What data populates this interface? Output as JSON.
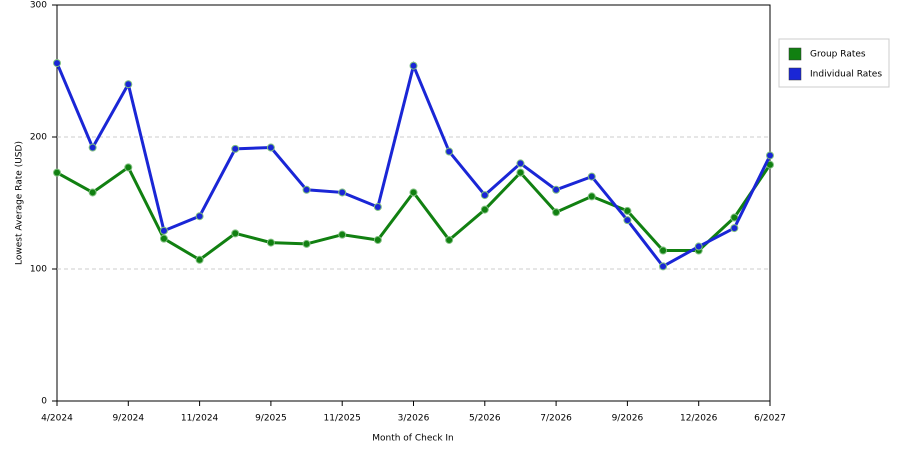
{
  "chart_data": {
    "type": "line",
    "x_label": "Month of Check In",
    "y_label": "Lowest Average Rate (USD)",
    "categories": [
      "4/2024",
      null,
      "9/2024",
      null,
      "11/2024",
      null,
      "9/2025",
      null,
      "11/2025",
      null,
      "3/2026",
      null,
      "5/2026",
      null,
      "7/2026",
      null,
      "9/2026",
      null,
      "12/2026",
      null,
      "6/2027"
    ],
    "series": [
      {
        "name": "Group Rates",
        "color": "#118011",
        "values": [
          173,
          158,
          177,
          123,
          107,
          127,
          120,
          119,
          126,
          122,
          158,
          122,
          145,
          173,
          143,
          155,
          144,
          114,
          114,
          139,
          179
        ]
      },
      {
        "name": "Individual Rates",
        "color": "#1a26d6",
        "values": [
          256,
          192,
          240,
          129,
          140,
          191,
          192,
          160,
          158,
          147,
          254,
          189,
          156,
          180,
          160,
          170,
          137,
          102,
          117,
          131,
          186
        ]
      }
    ],
    "ylim": [
      0,
      300
    ],
    "yticks": [
      0,
      100,
      200,
      300
    ],
    "grid": true,
    "legend": "right"
  }
}
